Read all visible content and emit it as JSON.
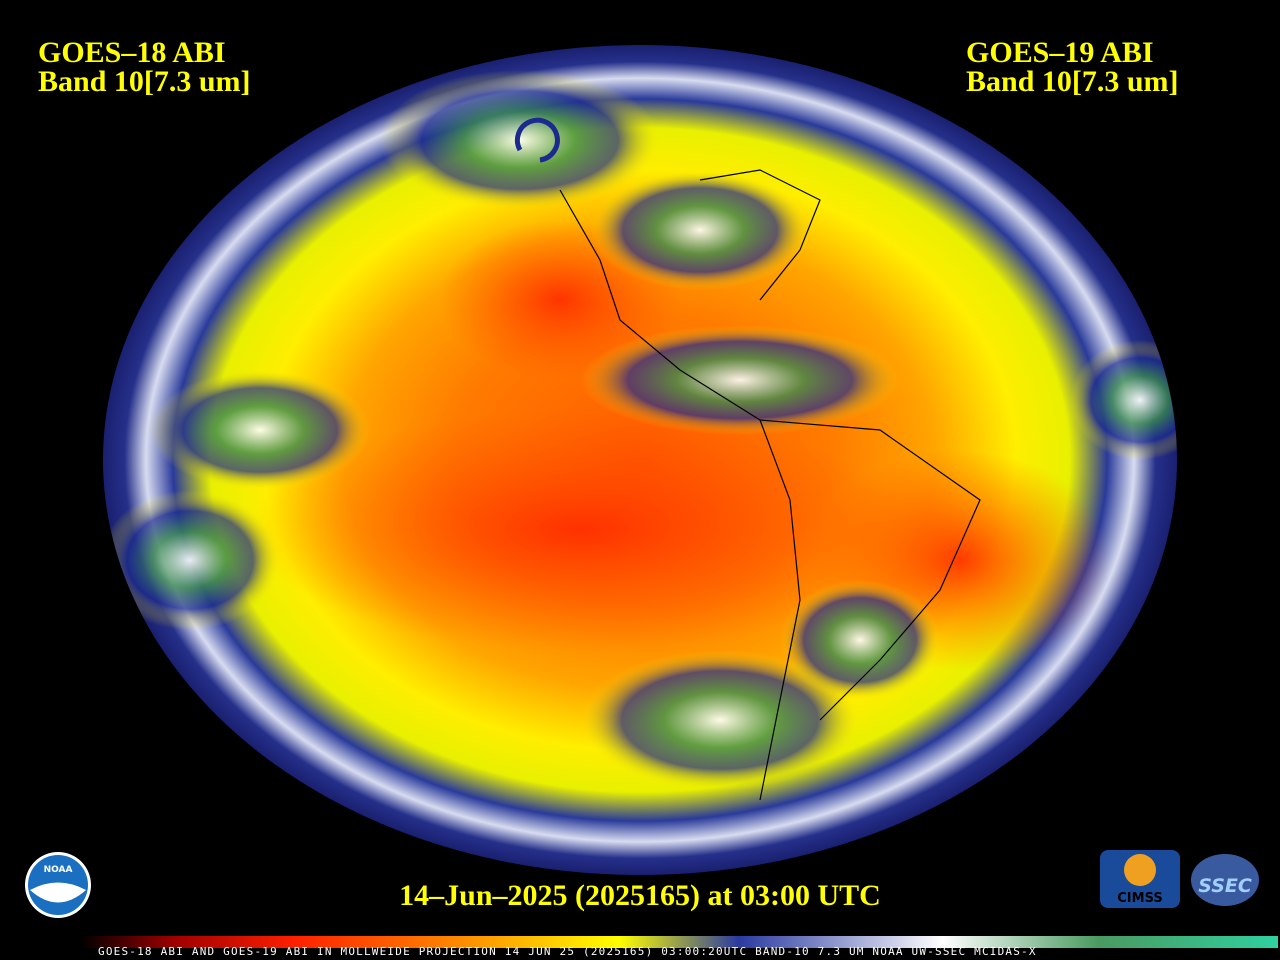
{
  "header": {
    "left": {
      "satellite": "GOES–18 ABI",
      "band": "Band 10[7.3 um]"
    },
    "right": {
      "satellite": "GOES–19 ABI",
      "band": "Band 10[7.3 um]"
    }
  },
  "timestamp": "14–Jun–2025 (2025165) at 03:00 UTC",
  "caption": "GOES-18 ABI AND GOES-19 ABI IN MOLLWEIDE PROJECTION 14 JUN 25 (2025165) 03:00:20UTC BAND-10 7.3 UM NOAA UW-SSEC MCIDAS-X",
  "logos": {
    "noaa": "NOAA",
    "cimss": "CIMSS",
    "ssec": "SSEC"
  }
}
